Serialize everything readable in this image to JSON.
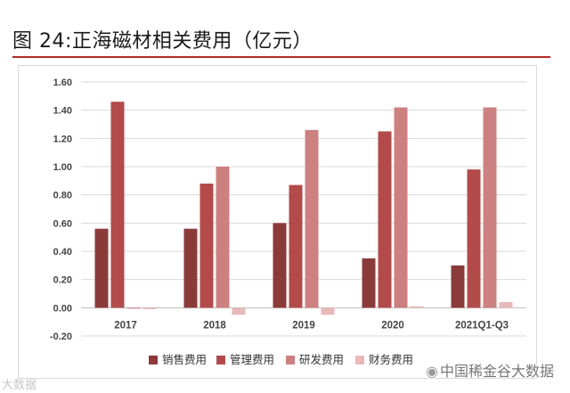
{
  "header": {
    "title": "图 24:正海磁材相关费用（亿元）"
  },
  "watermarks": {
    "left": "大数据",
    "right_icon": "wechat-icon",
    "right": "中国稀金谷大数据"
  },
  "colors": {
    "rule": "#b22a2a",
    "series": [
      "#8b3a3a",
      "#b34b4b",
      "#cd8080",
      "#e8b9b9"
    ]
  },
  "chart_data": {
    "type": "bar",
    "categories": [
      "2017",
      "2018",
      "2019",
      "2020",
      "2021Q1-Q3"
    ],
    "series": [
      {
        "name": "销售费用",
        "values": [
          0.56,
          0.56,
          0.6,
          0.35,
          0.3
        ]
      },
      {
        "name": "管理费用",
        "values": [
          1.46,
          0.88,
          0.87,
          1.25,
          0.98
        ]
      },
      {
        "name": "研发费用",
        "values": [
          0.0,
          1.0,
          1.26,
          1.42,
          1.42
        ]
      },
      {
        "name": "财务费用",
        "values": [
          -0.01,
          -0.05,
          -0.05,
          0.01,
          0.04
        ]
      }
    ],
    "y_ticks": [
      "1.60",
      "1.40",
      "1.20",
      "1.00",
      "0.80",
      "0.60",
      "0.40",
      "0.20",
      "0.00",
      "-0.20"
    ],
    "ylim": [
      -0.2,
      1.6
    ],
    "grid": true,
    "legend_position": "bottom",
    "title": "",
    "xlabel": "",
    "ylabel": ""
  }
}
